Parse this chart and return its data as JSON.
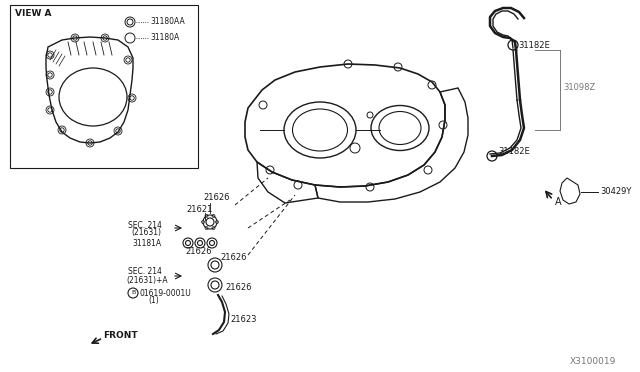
{
  "diagram_id": "X3100019",
  "bg_color": "#ffffff",
  "line_color": "#1a1a1a",
  "gray_color": "#777777",
  "fig_width": 6.4,
  "fig_height": 3.72,
  "labels": {
    "view_a": "VIEW A",
    "legend1_code": "31180AA",
    "legend2_code": "31180A",
    "part_21626": "21626",
    "part_21621": "21621",
    "part_21623": "21623",
    "part_31181A": "31181A",
    "part_sec214_1": "SEC. 214",
    "part_sec214_1b": "(21631)",
    "part_sec214_2": "SEC. 214",
    "part_sec214_2b": "(21631)+A",
    "part_01619": "01619-0001U",
    "part_01619b": "(1)",
    "part_front": "FRONT",
    "part_31182E_top": "31182E",
    "part_31098Z": "31098Z",
    "part_31182E_bot": "31182E",
    "part_30429Y": "30429Y",
    "arrow_a": "A"
  }
}
